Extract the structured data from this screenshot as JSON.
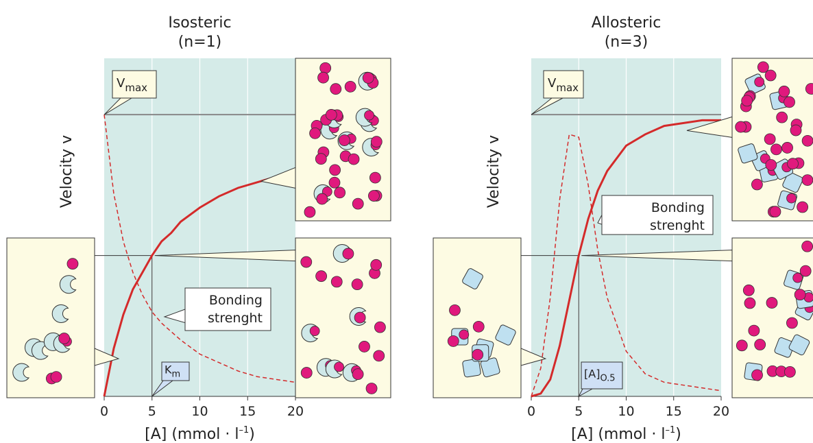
{
  "chart_data": [
    {
      "type": "line",
      "title": "Isosteric",
      "subtitle": "(n=1)",
      "ylabel": "Velocity v",
      "xlabel": {
        "main": "[A]  (mmol · l",
        "sup": "–1",
        "end": ")"
      },
      "x": [
        0,
        1,
        2,
        3,
        4,
        5,
        6,
        7,
        8,
        10,
        12,
        14,
        16,
        18,
        20
      ],
      "series": [
        {
          "color": "#d42a2a",
          "style": "solid",
          "values": [
            0,
            0.17,
            0.29,
            0.38,
            0.44,
            0.5,
            0.55,
            0.58,
            0.62,
            0.67,
            0.71,
            0.74,
            0.76,
            0.78,
            0.8
          ]
        },
        {
          "color": "#d42a2a",
          "style": "dashed",
          "values": [
            1,
            0.72,
            0.55,
            0.44,
            0.36,
            0.3,
            0.26,
            0.23,
            0.2,
            0.15,
            0.12,
            0.09,
            0.07,
            0.06,
            0.05
          ]
        }
      ],
      "xlim": [
        0,
        20
      ],
      "xticks": [
        0,
        5,
        10,
        15,
        20
      ],
      "ylim": [
        0,
        1.2
      ],
      "vmax": 1,
      "vmax_label": {
        "main": "V",
        "sub": "max"
      },
      "ref_x": 5,
      "ref_y": 0.5,
      "ref_label": {
        "main": "K",
        "sub": "m"
      },
      "annotation": [
        "Bonding",
        "strenght"
      ]
    },
    {
      "type": "line",
      "title": "Allosteric",
      "subtitle": "(n=3)",
      "ylabel": "Velocity v",
      "xlabel": {
        "main": "[A]  (mmol · l",
        "sup": "–1",
        "end": ")"
      },
      "x": [
        0,
        1,
        2,
        3,
        4,
        5,
        6,
        7,
        8,
        10,
        12,
        14,
        16,
        18,
        20
      ],
      "series": [
        {
          "color": "#d42a2a",
          "style": "solid",
          "values": [
            0,
            0.01,
            0.06,
            0.18,
            0.34,
            0.5,
            0.63,
            0.73,
            0.8,
            0.89,
            0.93,
            0.96,
            0.97,
            0.98,
            0.98
          ]
        },
        {
          "color": "#d42a2a",
          "style": "dashed",
          "values": [
            0,
            0.1,
            0.35,
            0.7,
            0.93,
            0.92,
            0.75,
            0.52,
            0.35,
            0.16,
            0.08,
            0.05,
            0.04,
            0.03,
            0.02
          ]
        }
      ],
      "xlim": [
        0,
        20
      ],
      "xticks": [
        0,
        5,
        10,
        15,
        20
      ],
      "ylim": [
        0,
        1.2
      ],
      "vmax": 1,
      "vmax_label": {
        "main": "V",
        "sub": "max"
      },
      "ref_x": 5,
      "ref_y": 0.5,
      "ref_label": {
        "main": "[A]",
        "sub": "O.5"
      },
      "annotation": [
        "Bonding",
        "strenght"
      ]
    }
  ]
}
